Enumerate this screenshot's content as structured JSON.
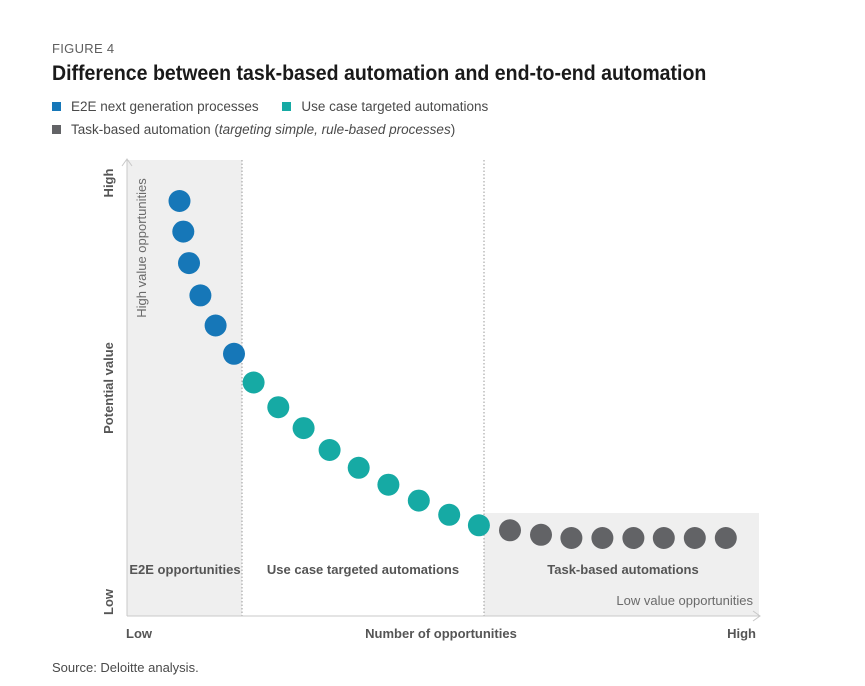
{
  "figure_label": "FIGURE 4",
  "title": "Difference between task-based automation and end-to-end automation",
  "legend": {
    "e2e": {
      "label": "E2E next generation processes",
      "color": "#1677b8"
    },
    "use_case": {
      "label": "Use case targeted automations",
      "color": "#16aaa4"
    },
    "task_based": {
      "label": "Task-based automation (",
      "italic": "targeting simple, rule-based processes",
      "suffix": ")",
      "color": "#626366"
    }
  },
  "source": "Source: Deloitte analysis.",
  "chart_data": {
    "type": "scatter",
    "title": "Difference between task-based automation and end-to-end automation",
    "xlabel": "Number of opportunities",
    "ylabel": "Potential value",
    "x_low_label": "Low",
    "x_high_label": "High",
    "y_low_label": "Low",
    "y_high_label": "High",
    "xlim": [
      0,
      100
    ],
    "ylim": [
      0,
      100
    ],
    "grid": false,
    "region_boundaries": [
      18.5,
      57.8
    ],
    "regions": [
      {
        "label": "E2E opportunities",
        "x_range": [
          0,
          18.5
        ]
      },
      {
        "label": "Use case targeted automations",
        "x_range": [
          18.5,
          57.8
        ]
      },
      {
        "label": "Task-based automations",
        "x_range": [
          57.8,
          100
        ]
      }
    ],
    "annotations": {
      "high_value": "High value opportunities",
      "low_value": "Low value opportunities"
    },
    "series": [
      {
        "name": "E2E next generation processes",
        "color": "#1677b8",
        "points": [
          [
            8.3,
            91
          ],
          [
            8.9,
            84.3
          ],
          [
            9.8,
            77.4
          ],
          [
            11.6,
            70.3
          ],
          [
            14.0,
            63.7
          ],
          [
            16.9,
            57.5
          ]
        ]
      },
      {
        "name": "Use case targeted automations",
        "color": "#16aaa4",
        "points": [
          [
            20.0,
            51.2
          ],
          [
            23.9,
            45.8
          ],
          [
            27.9,
            41.2
          ],
          [
            32.0,
            36.4
          ],
          [
            36.6,
            32.5
          ],
          [
            41.3,
            28.8
          ],
          [
            46.1,
            25.3
          ],
          [
            50.9,
            22.2
          ],
          [
            55.6,
            19.9
          ]
        ]
      },
      {
        "name": "Task-based automation",
        "color": "#626366",
        "points": [
          [
            60.5,
            18.8
          ],
          [
            65.4,
            17.8
          ],
          [
            70.2,
            17.1
          ],
          [
            75.1,
            17.1
          ],
          [
            80.0,
            17.1
          ],
          [
            84.8,
            17.1
          ],
          [
            89.7,
            17.1
          ],
          [
            94.6,
            17.1
          ]
        ]
      }
    ]
  }
}
